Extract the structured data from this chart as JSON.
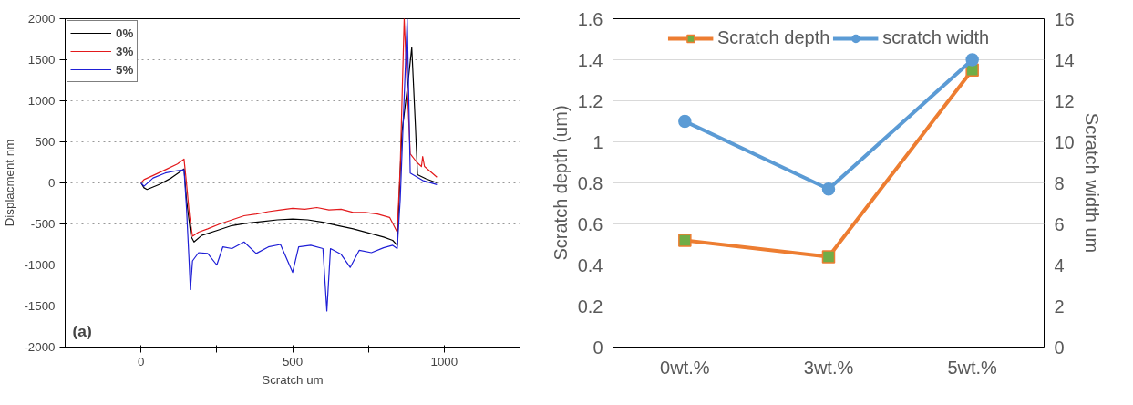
{
  "chart_data": [
    {
      "type": "line",
      "xlabel": "Scratch um",
      "ylabel": "Displacment nm",
      "annotations": [
        "(a)"
      ],
      "xlim": [
        -250,
        1250
      ],
      "xticks": [
        0,
        {
          "value": 250,
          "label": null
        },
        500,
        {
          "value": 750,
          "label": null
        },
        1000,
        {
          "value": 1250,
          "label": null
        }
      ],
      "ylim": [
        -2000,
        2000
      ],
      "yticks": [
        -2000,
        -1500,
        -1000,
        -500,
        0,
        500,
        1000,
        1500,
        2000
      ],
      "grid": "y",
      "legend": "top left",
      "series": [
        {
          "name": "0%",
          "color": "#000000",
          "x": [
            0,
            10,
            20,
            60,
            100,
            142,
            150,
            165,
            175,
            200,
            250,
            300,
            350,
            400,
            450,
            500,
            550,
            600,
            650,
            700,
            750,
            800,
            830,
            845,
            860,
            880,
            893,
            905,
            912,
            940,
            976
          ],
          "values": [
            0,
            -60,
            -80,
            -20,
            60,
            170,
            -200,
            -650,
            -720,
            -640,
            -580,
            -520,
            -490,
            -470,
            -450,
            -440,
            -450,
            -480,
            -520,
            -560,
            -610,
            -660,
            -700,
            -760,
            600,
            1200,
            1650,
            700,
            100,
            50,
            0
          ]
        },
        {
          "name": "3%",
          "color": "#e31a1c",
          "x": [
            0,
            10,
            40,
            80,
            120,
            142,
            150,
            160,
            170,
            190,
            220,
            260,
            300,
            340,
            380,
            420,
            460,
            500,
            540,
            580,
            620,
            660,
            700,
            740,
            780,
            820,
            845,
            855,
            868,
            888,
            910,
            925,
            929,
            935,
            976
          ],
          "values": [
            0,
            40,
            90,
            160,
            230,
            290,
            0,
            -400,
            -650,
            -600,
            -560,
            -500,
            -450,
            -400,
            -380,
            -350,
            -330,
            -310,
            -320,
            -300,
            -330,
            -320,
            -360,
            -360,
            -380,
            -420,
            -600,
            200,
            2000,
            355,
            250,
            200,
            320,
            200,
            70
          ]
        },
        {
          "name": "5%",
          "color": "#1f1fd6",
          "x": [
            0,
            10,
            40,
            80,
            120,
            142,
            150,
            158,
            163,
            170,
            190,
            220,
            250,
            270,
            300,
            340,
            380,
            420,
            460,
            500,
            520,
            560,
            600,
            613,
            625,
            660,
            690,
            720,
            760,
            800,
            830,
            845,
            855,
            878,
            888,
            929,
            976
          ],
          "values": [
            0,
            -40,
            60,
            120,
            150,
            160,
            -300,
            -900,
            -1300,
            -950,
            -850,
            -860,
            -1000,
            -780,
            -800,
            -720,
            -860,
            -780,
            -750,
            -1090,
            -780,
            -760,
            -800,
            -1560,
            -800,
            -870,
            -1030,
            -820,
            -850,
            -790,
            -760,
            -800,
            -200,
            2000,
            120,
            30,
            -20
          ]
        }
      ]
    },
    {
      "type": "line",
      "ylabel": "Scratch depth (um)",
      "y2label": "Scratch width um",
      "categories": [
        "0wt.%",
        "3wt.%",
        "5wt.%"
      ],
      "ylim": [
        0,
        1.6
      ],
      "yticks": [
        0,
        0.2,
        0.4,
        0.6,
        0.8,
        1,
        1.2,
        1.4,
        1.6
      ],
      "y2lim": [
        0,
        16
      ],
      "y2ticks": [
        0,
        2,
        4,
        6,
        8,
        10,
        12,
        14,
        16
      ],
      "grid": "y",
      "legend": "top",
      "series": [
        {
          "name": "Scratch depth",
          "color": "#ed7d31",
          "marker": "square",
          "values": [
            0.52,
            0.44,
            1.35
          ]
        },
        {
          "name": "scratch width",
          "color": "#5b9bd5",
          "marker": "circle",
          "axis": "y2",
          "values": [
            11,
            7.7,
            14
          ]
        }
      ]
    }
  ]
}
